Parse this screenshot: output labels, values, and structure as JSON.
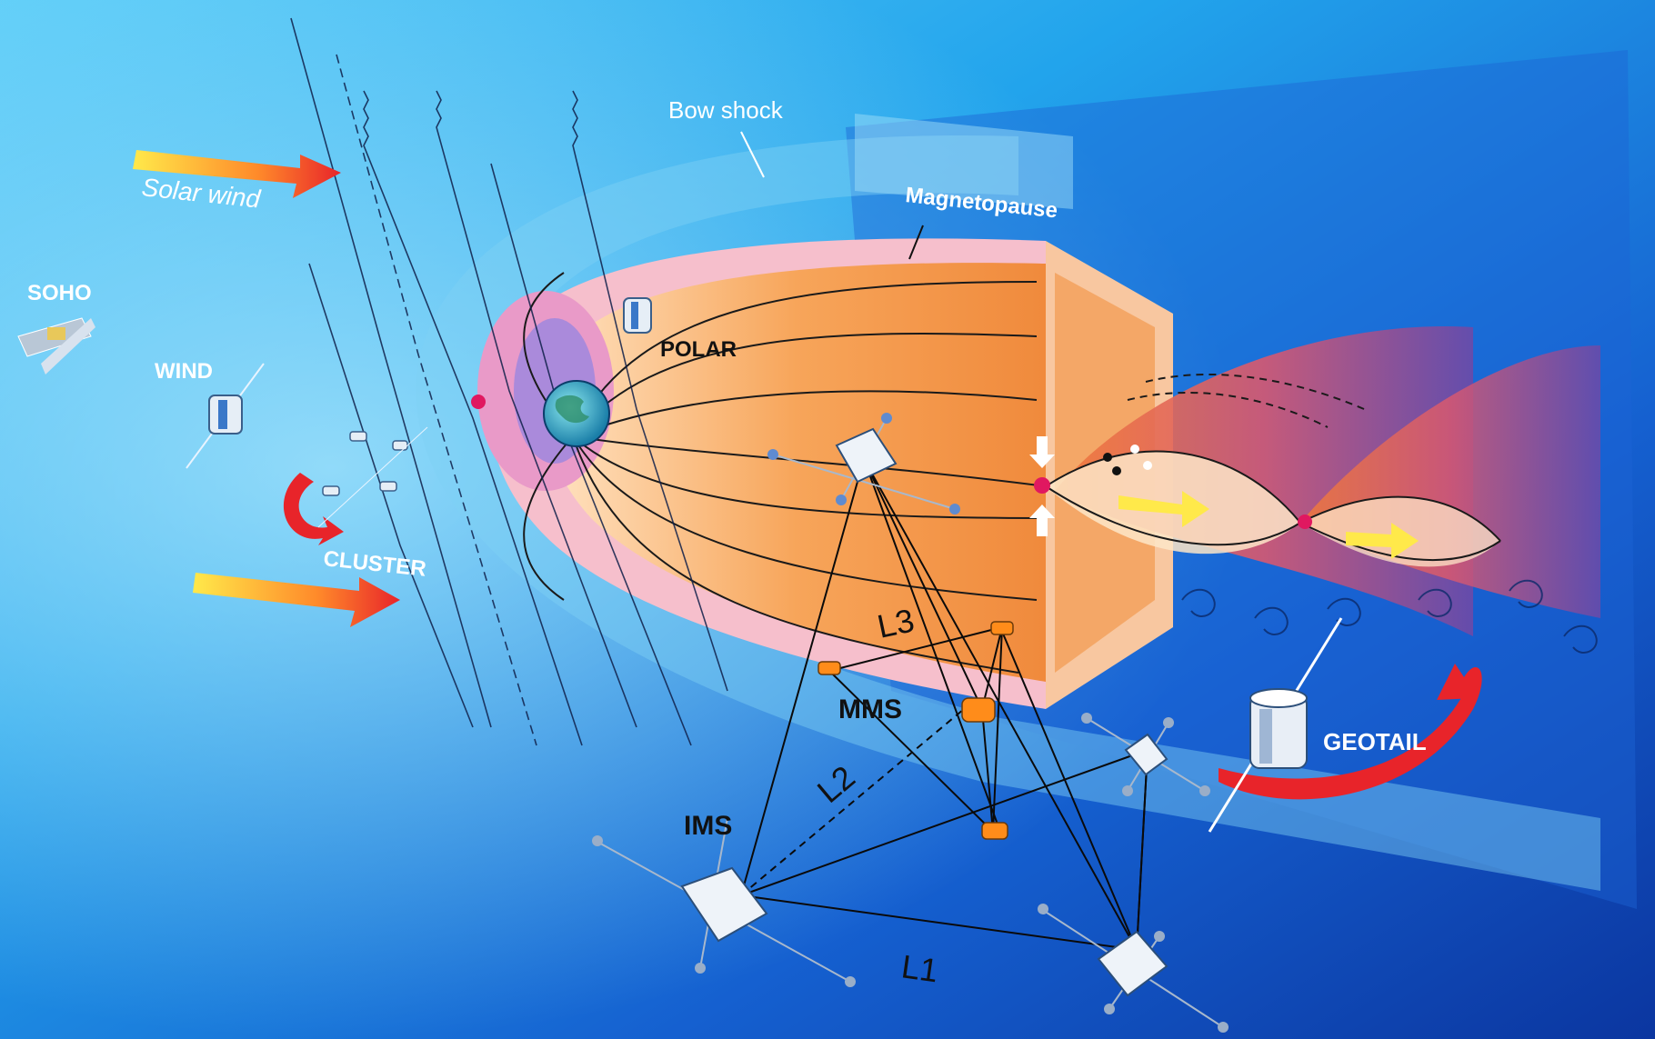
{
  "labels": {
    "bow_shock": "Bow shock",
    "magnetopause": "Magnetopause",
    "solar_wind": "Solar wind",
    "soho": "SOHO",
    "wind": "WIND",
    "cluster": "CLUSTER",
    "polar": "POLAR",
    "geotail": "GEOTAIL",
    "mms": "MMS",
    "ims": "IMS",
    "l1": "L1",
    "l2": "L2",
    "l3": "L3"
  },
  "colors": {
    "space_light": "#4fc3f7",
    "space_mid": "#1e88e5",
    "space_dark": "#0d47a1",
    "magnetosphere_orange": "#f5a04a",
    "magnetopause_pink": "#f4b4c4",
    "arrow_red": "#e8242a",
    "arrow_yellow": "#ffe94a",
    "mms_orange": "#ff8c1a",
    "earth": "#2aa7c9"
  }
}
